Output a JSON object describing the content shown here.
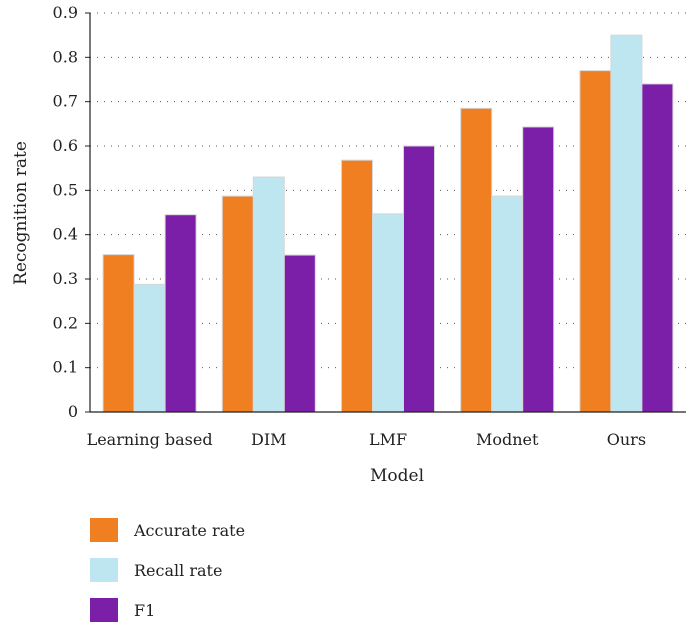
{
  "chart_data": {
    "type": "bar",
    "xlabel": "Model",
    "ylabel": "Recognition rate",
    "categories": [
      "Learning based",
      "DIM",
      "LMF",
      "Modnet",
      "Ours"
    ],
    "series": [
      {
        "name": "Accurate rate",
        "color": "#f07f22",
        "values": [
          0.355,
          0.487,
          0.568,
          0.685,
          0.77
        ]
      },
      {
        "name": "Recall rate",
        "color": "#bde6f1",
        "values": [
          0.288,
          0.53,
          0.447,
          0.487,
          0.85
        ]
      },
      {
        "name": "F1",
        "color": "#7c1fa8",
        "values": [
          0.445,
          0.354,
          0.6,
          0.643,
          0.74
        ]
      }
    ],
    "ylim": [
      0,
      0.9
    ],
    "yticks": [
      "0",
      "0.1",
      "0.2",
      "0.3",
      "0.4",
      "0.5",
      "0.6",
      "0.7",
      "0.8",
      "0.9"
    ],
    "grid": "horizontal-dotted",
    "legend_position": "bottom-left"
  }
}
